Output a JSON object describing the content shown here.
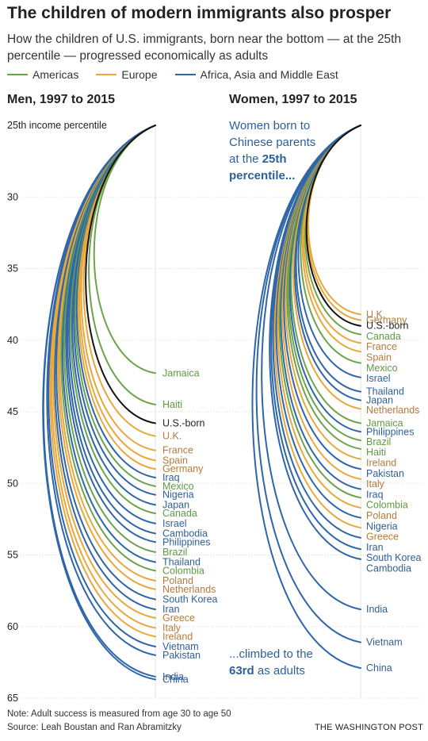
{
  "header": {
    "title": "The children of modern immigrants also prosper",
    "subtitle": "How the children of U.S. immigrants, born near the bottom — at the 25th percentile — progressed economically as adults"
  },
  "legend": [
    {
      "label": "Americas",
      "color": "#6da34d"
    },
    {
      "label": "Europe",
      "color": "#e8a83d"
    },
    {
      "label": "Africa, Asia and Middle East",
      "color": "#2f66a8"
    }
  ],
  "colors": {
    "Americas": "#6da34d",
    "Europe": "#e8a83d",
    "Asia": "#2f66a8",
    "US": "#111111",
    "label_Americas": "#5f9a44",
    "label_Europe": "#b57a3c",
    "label_Asia": "#2f5f98",
    "label_US": "#222222",
    "grid": "#dddddd"
  },
  "annotations": {
    "women_top_1": "Women born to",
    "women_top_2": "Chinese parents",
    "women_top_3_pre": "at the ",
    "women_top_3_bold": "25th",
    "women_top_4": "percentile...",
    "women_bottom_1": "...climbed to the",
    "women_bottom_2_bold": "63rd",
    "women_bottom_2_post": " as adults"
  },
  "footer": {
    "note": "Note: Adult success is measured from age 30 to age 50",
    "source": "Source: Leah Boustan and Ran Abramitzky",
    "credit": "THE WASHINGTON POST"
  },
  "chart_data": [
    {
      "type": "line",
      "title": "Men, 1997 to 2015",
      "ylabel": "25th income percentile",
      "y_reversed": true,
      "ylim": [
        25,
        65
      ],
      "yticks": [
        30,
        35,
        40,
        45,
        50,
        55,
        60,
        65
      ],
      "start": 25,
      "series": [
        {
          "name": "Jamaica",
          "region": "Americas",
          "value": 42.3
        },
        {
          "name": "Haiti",
          "region": "Americas",
          "value": 44.5
        },
        {
          "name": "U.S.-born",
          "region": "US",
          "value": 45.8
        },
        {
          "name": "U.K.",
          "region": "Europe",
          "value": 46.7
        },
        {
          "name": "France",
          "region": "Europe",
          "value": 47.7
        },
        {
          "name": "Spain",
          "region": "Europe",
          "value": 48.4
        },
        {
          "name": "Germany",
          "region": "Europe",
          "value": 49.0
        },
        {
          "name": "Iraq",
          "region": "Asia",
          "value": 49.6
        },
        {
          "name": "Mexico",
          "region": "Americas",
          "value": 50.2
        },
        {
          "name": "Nigeria",
          "region": "Asia",
          "value": 50.8
        },
        {
          "name": "Japan",
          "region": "Asia",
          "value": 51.5
        },
        {
          "name": "Canada",
          "region": "Americas",
          "value": 52.1
        },
        {
          "name": "Israel",
          "region": "Asia",
          "value": 52.8
        },
        {
          "name": "Cambodia",
          "region": "Asia",
          "value": 53.5
        },
        {
          "name": "Philippines",
          "region": "Asia",
          "value": 54.1
        },
        {
          "name": "Brazil",
          "region": "Americas",
          "value": 54.8
        },
        {
          "name": "Thailand",
          "region": "Asia",
          "value": 55.5
        },
        {
          "name": "Colombia",
          "region": "Americas",
          "value": 56.1
        },
        {
          "name": "Poland",
          "region": "Europe",
          "value": 56.8
        },
        {
          "name": "Netherlands",
          "region": "Europe",
          "value": 57.4
        },
        {
          "name": "South Korea",
          "region": "Asia",
          "value": 58.1
        },
        {
          "name": "Iran",
          "region": "Asia",
          "value": 58.8
        },
        {
          "name": "Greece",
          "region": "Europe",
          "value": 59.4
        },
        {
          "name": "Italy",
          "region": "Europe",
          "value": 60.1
        },
        {
          "name": "Ireland",
          "region": "Europe",
          "value": 60.7
        },
        {
          "name": "Vietnam",
          "region": "Asia",
          "value": 61.4
        },
        {
          "name": "Pakistan",
          "region": "Asia",
          "value": 62.0
        },
        {
          "name": "India",
          "region": "Asia",
          "value": 63.5
        },
        {
          "name": "China",
          "region": "Asia",
          "value": 63.7
        }
      ],
      "label_order": [
        "Jamaica",
        "Haiti",
        "U.S.-born",
        "U.K.",
        "France",
        "Spain",
        "Germany",
        "Iraq",
        "Mexico",
        "Nigeria",
        "Japan",
        "Canada",
        "Israel",
        "Cambodia",
        "Philippines",
        "Brazil",
        "Thailand",
        "Colombia",
        "Poland",
        "Netherlands",
        "South Korea",
        "Iran",
        "Greece",
        "Italy",
        "Ireland",
        "Vietnam",
        "Pakistan",
        "India",
        "China"
      ]
    },
    {
      "type": "line",
      "title": "Women, 1997 to 2015",
      "y_reversed": true,
      "ylim": [
        25,
        65
      ],
      "start": 25,
      "series": [
        {
          "name": "U.K.",
          "region": "Europe",
          "value": 38.2
        },
        {
          "name": "Germany",
          "region": "Europe",
          "value": 38.6
        },
        {
          "name": "U.S.-born",
          "region": "US",
          "value": 39.0
        },
        {
          "name": "Canada",
          "region": "Americas",
          "value": 39.6
        },
        {
          "name": "France",
          "region": "Europe",
          "value": 40.2
        },
        {
          "name": "Spain",
          "region": "Europe",
          "value": 40.8
        },
        {
          "name": "Mexico",
          "region": "Americas",
          "value": 41.6
        },
        {
          "name": "Israel",
          "region": "Asia",
          "value": 42.6
        },
        {
          "name": "Thailand",
          "region": "Asia",
          "value": 43.6
        },
        {
          "name": "Japan",
          "region": "Asia",
          "value": 44.2
        },
        {
          "name": "Netherlands",
          "region": "Europe",
          "value": 44.8
        },
        {
          "name": "Jamaica",
          "region": "Americas",
          "value": 45.8
        },
        {
          "name": "Philippines",
          "region": "Asia",
          "value": 46.4
        },
        {
          "name": "Brazil",
          "region": "Americas",
          "value": 47.0
        },
        {
          "name": "Haiti",
          "region": "Americas",
          "value": 47.6
        },
        {
          "name": "Ireland",
          "region": "Europe",
          "value": 48.3
        },
        {
          "name": "Pakistan",
          "region": "Asia",
          "value": 49.0
        },
        {
          "name": "Italy",
          "region": "Europe",
          "value": 49.7
        },
        {
          "name": "Iraq",
          "region": "Asia",
          "value": 50.4
        },
        {
          "name": "Colombia",
          "region": "Americas",
          "value": 51.0
        },
        {
          "name": "Poland",
          "region": "Europe",
          "value": 51.7
        },
        {
          "name": "Nigeria",
          "region": "Asia",
          "value": 52.4
        },
        {
          "name": "Greece",
          "region": "Europe",
          "value": 53.1
        },
        {
          "name": "Iran",
          "region": "Asia",
          "value": 53.8
        },
        {
          "name": "South Korea",
          "region": "Asia",
          "value": 54.6
        },
        {
          "name": "Cambodia",
          "region": "Asia",
          "value": 55.3
        },
        {
          "name": "India",
          "region": "Asia",
          "value": 58.8
        },
        {
          "name": "Vietnam",
          "region": "Asia",
          "value": 61.1
        },
        {
          "name": "China",
          "region": "Asia",
          "value": 62.9
        }
      ],
      "label_order": [
        "U.K.",
        "Germany",
        "U.S.-born",
        "Canada",
        "France",
        "Spain",
        "Mexico",
        "Israel",
        "Thailand",
        "Japan",
        "Netherlands",
        "Jamaica",
        "Philippines",
        "Brazil",
        "Haiti",
        "Ireland",
        "Pakistan",
        "Italy",
        "Iraq",
        "Colombia",
        "Poland",
        "Nigeria",
        "Greece",
        "Iran",
        "South Korea",
        "Cambodia",
        "India",
        "Vietnam",
        "China"
      ]
    }
  ]
}
